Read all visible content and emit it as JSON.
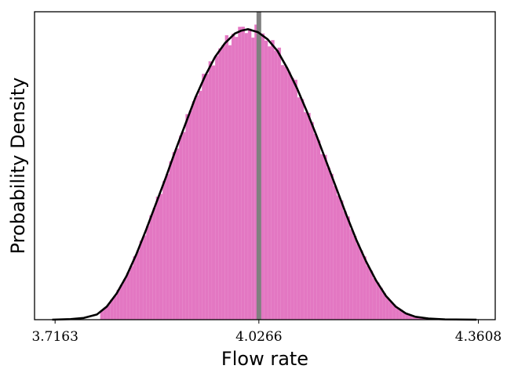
{
  "chart_data": {
    "type": "histogram",
    "xlabel": "Flow rate",
    "ylabel": "Probability Density",
    "xlim": [
      3.685,
      4.3865
    ],
    "ylim": [
      0,
      1.06
    ],
    "x_ticks": [
      {
        "value": 3.7163,
        "label": "3.7163"
      },
      {
        "value": 4.0266,
        "label": "4.0266"
      },
      {
        "value": 4.3608,
        "label": "4.3608"
      }
    ],
    "y_ticks_shown": false,
    "grid": false,
    "vline": {
      "x": 4.0266,
      "color": "#808080"
    },
    "histogram": {
      "color": "#e377c2",
      "bin_range": [
        3.785,
        4.335
      ],
      "bin_count": 110
    },
    "kde_curve": {
      "color": "#000000",
      "points": [
        [
          3.712,
          0.0
        ],
        [
          3.74,
          0.002
        ],
        [
          3.76,
          0.006
        ],
        [
          3.78,
          0.018
        ],
        [
          3.795,
          0.045
        ],
        [
          3.81,
          0.09
        ],
        [
          3.825,
          0.15
        ],
        [
          3.84,
          0.225
        ],
        [
          3.855,
          0.31
        ],
        [
          3.87,
          0.4
        ],
        [
          3.885,
          0.49
        ],
        [
          3.9,
          0.585
        ],
        [
          3.915,
          0.675
        ],
        [
          3.93,
          0.765
        ],
        [
          3.945,
          0.84
        ],
        [
          3.96,
          0.905
        ],
        [
          3.975,
          0.952
        ],
        [
          3.99,
          0.985
        ],
        [
          4.0,
          0.995
        ],
        [
          4.01,
          1.0
        ],
        [
          4.025,
          0.99
        ],
        [
          4.04,
          0.965
        ],
        [
          4.055,
          0.925
        ],
        [
          4.07,
          0.865
        ],
        [
          4.085,
          0.795
        ],
        [
          4.1,
          0.715
        ],
        [
          4.115,
          0.63
        ],
        [
          4.13,
          0.54
        ],
        [
          4.145,
          0.45
        ],
        [
          4.16,
          0.36
        ],
        [
          4.175,
          0.275
        ],
        [
          4.19,
          0.2
        ],
        [
          4.205,
          0.135
        ],
        [
          4.22,
          0.082
        ],
        [
          4.235,
          0.045
        ],
        [
          4.25,
          0.022
        ],
        [
          4.265,
          0.01
        ],
        [
          4.285,
          0.004
        ],
        [
          4.31,
          0.001
        ],
        [
          4.358,
          0.0
        ]
      ]
    }
  }
}
